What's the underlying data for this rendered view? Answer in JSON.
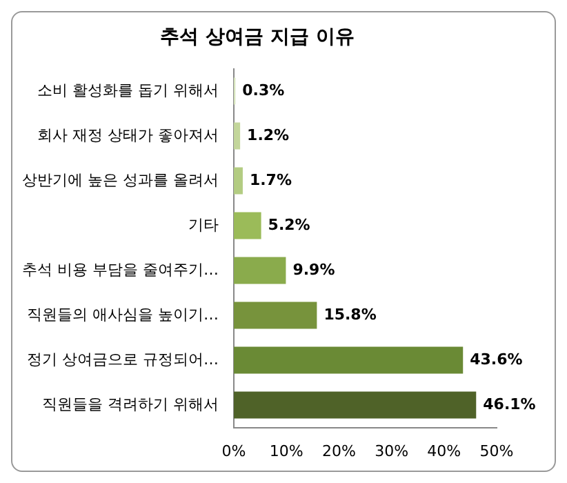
{
  "chart_data": {
    "type": "bar",
    "orientation": "horizontal",
    "title": "추석 상여금 지급 이유",
    "categories": [
      "소비 활성화를 돕기 위해서",
      "회사 재정 상태가 좋아져서",
      "상반기에 높은 성과를 올려서",
      "기타",
      "추석 비용 부담을 줄여주기…",
      "직원들의 애사심을 높이기…",
      "정기 상여금으로 규정되어…",
      "직원들을 격려하기 위해서"
    ],
    "values": [
      0.3,
      1.2,
      1.7,
      5.2,
      9.9,
      15.8,
      43.6,
      46.1
    ],
    "colors": [
      "#d7e4bd",
      "#c3d69b",
      "#b3cc82",
      "#9bbb59",
      "#8aab4c",
      "#77933c",
      "#6a8a35",
      "#4f6228"
    ],
    "value_labels": [
      "0.3%",
      "1.2%",
      "1.7%",
      "5.2%",
      "9.9%",
      "15.8%",
      "43.6%",
      "46.1%"
    ],
    "xlim": [
      0,
      50
    ],
    "xticks": [
      {
        "value": 0,
        "label": "0%"
      },
      {
        "value": 10,
        "label": "10%"
      },
      {
        "value": 20,
        "label": "20%"
      },
      {
        "value": 30,
        "label": "30%"
      },
      {
        "value": 40,
        "label": "40%"
      },
      {
        "value": 50,
        "label": "50%"
      }
    ],
    "grid": false,
    "legend": false
  }
}
